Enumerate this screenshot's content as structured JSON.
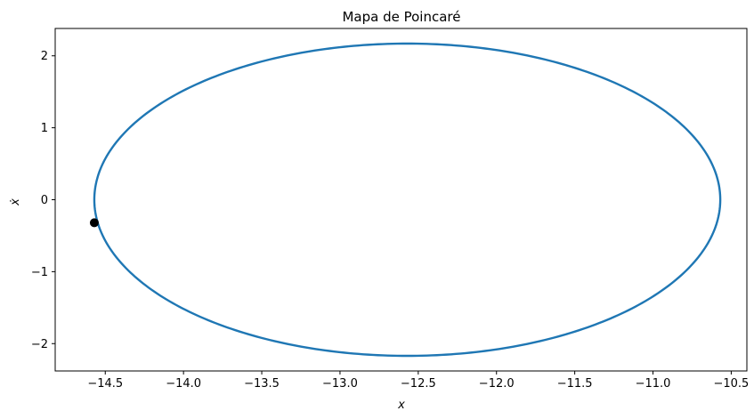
{
  "chart_data": {
    "type": "line",
    "title": "Mapa de Poincaré",
    "xlabel": "x",
    "ylabel": "ẋ",
    "xlim": [
      -14.82,
      -10.4
    ],
    "ylim": [
      -2.38,
      2.38
    ],
    "xticks": [
      -14.5,
      -14.0,
      -13.5,
      -13.0,
      -12.5,
      -12.0,
      -11.5,
      -11.0,
      -10.5
    ],
    "xtick_labels": [
      "−14.5",
      "−14.0",
      "−13.5",
      "−13.0",
      "−12.5",
      "−12.0",
      "−11.5",
      "−11.0",
      "−10.5"
    ],
    "yticks": [
      -2,
      -1,
      0,
      1,
      2
    ],
    "ytick_labels": [
      "−2",
      "−1",
      "0",
      "1",
      "2"
    ],
    "grid": false,
    "series": [
      {
        "kind": "ellipse",
        "center_x": -12.57,
        "center_y": 0.0,
        "semi_axis_x": 2.0,
        "semi_axis_y": 2.17,
        "color": "#1f77b4"
      }
    ],
    "marker": {
      "x": -14.57,
      "y": -0.32,
      "color": "#000000"
    }
  }
}
